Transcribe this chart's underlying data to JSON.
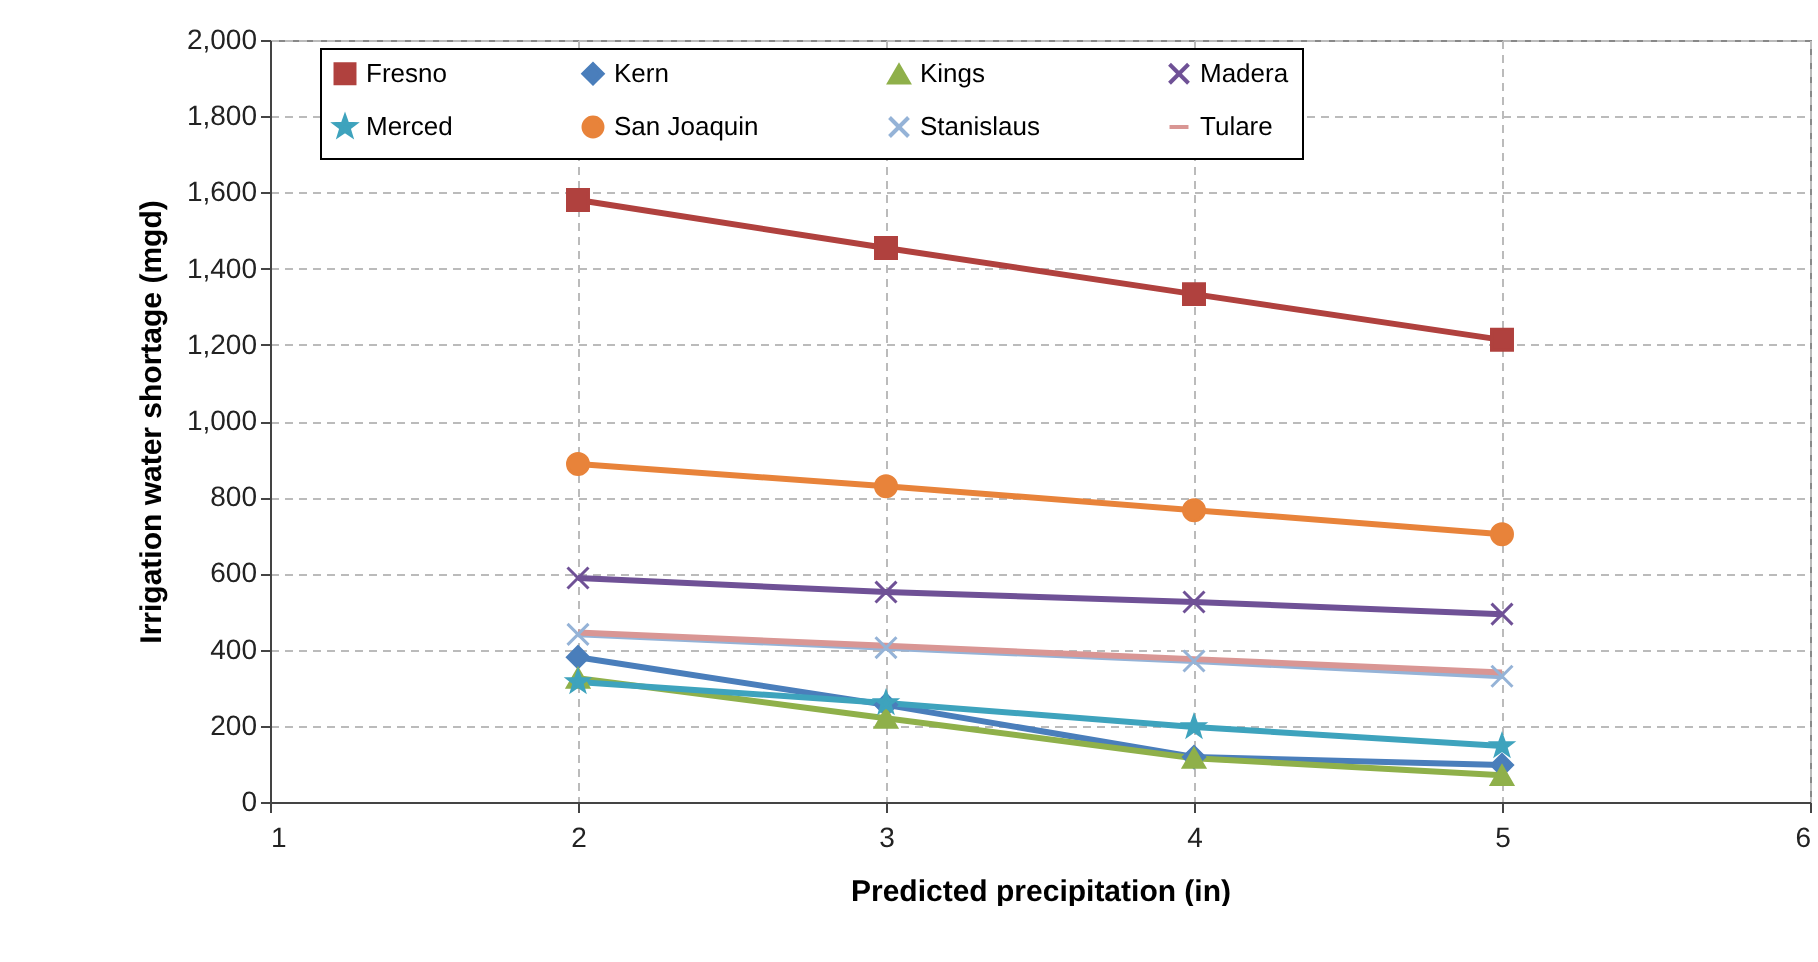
{
  "chart_data": {
    "type": "line",
    "xlabel": "Predicted precipitation (in)",
    "ylabel": "Irrigation  water shortage (mgd)",
    "x": [
      2,
      3,
      4,
      5
    ],
    "xlim": [
      1,
      6
    ],
    "xticks": [
      1,
      2,
      3,
      4,
      5,
      6
    ],
    "ylim": [
      0,
      2000
    ],
    "yticks": [
      {
        "value": 0,
        "label": "0"
      },
      {
        "value": 200,
        "label": "200"
      },
      {
        "value": 400,
        "label": "400"
      },
      {
        "value": 600,
        "label": "600"
      },
      {
        "value": 800,
        "label": "800"
      },
      {
        "value": 1000,
        "label": "1,000"
      },
      {
        "value": 1200,
        "label": "1,200"
      },
      {
        "value": 1400,
        "label": "1,400"
      },
      {
        "value": 1600,
        "label": "1,600"
      },
      {
        "value": 1800,
        "label": "1,800"
      },
      {
        "value": 2000,
        "label": "2,000"
      }
    ],
    "grid": true,
    "legend": "top",
    "line_style": "solid",
    "series": [
      {
        "name": "Fresno",
        "color": "#b0413e",
        "marker": "square",
        "values": [
          1580,
          1454,
          1333,
          1213
        ]
      },
      {
        "name": "Kern",
        "color": "#4a7ebb",
        "marker": "diamond",
        "values": [
          380,
          255,
          118,
          97
        ]
      },
      {
        "name": "Kings",
        "color": "#8fb04a",
        "marker": "triangle",
        "values": [
          325,
          220,
          115,
          70
        ]
      },
      {
        "name": "Madera",
        "color": "#6f5196",
        "marker": "cross",
        "values": [
          588,
          551,
          525,
          493
        ]
      },
      {
        "name": "Merced",
        "color": "#3ea3bd",
        "marker": "star",
        "values": [
          315,
          260,
          197,
          147
        ]
      },
      {
        "name": "San Joaquin",
        "color": "#e8833a",
        "marker": "circle",
        "values": [
          887,
          829,
          766,
          703
        ]
      },
      {
        "name": "Stanislaus",
        "color": "#95b3d7",
        "marker": "cross",
        "values": [
          440,
          405,
          370,
          330
        ]
      },
      {
        "name": "Tulare",
        "color": "#d99694",
        "marker": "none",
        "values": [
          445,
          410,
          375,
          340
        ]
      }
    ]
  }
}
